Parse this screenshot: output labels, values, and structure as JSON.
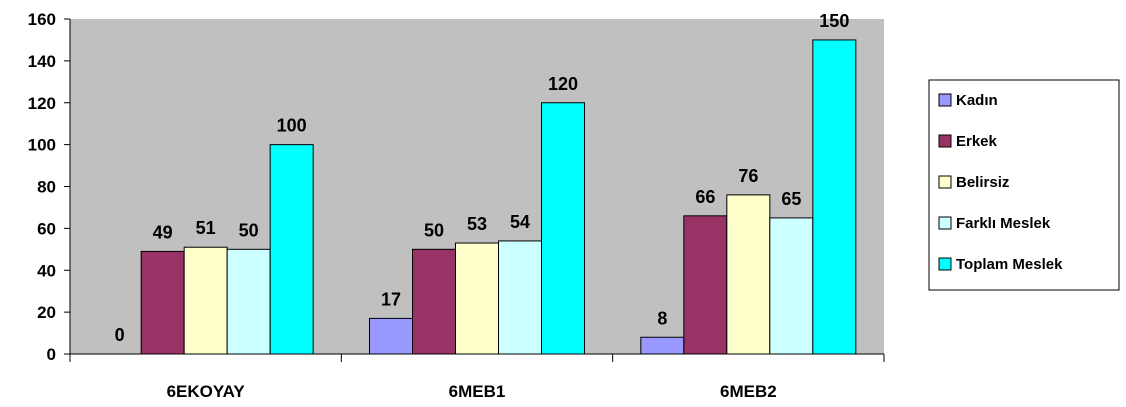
{
  "chart_data": {
    "type": "bar",
    "categories": [
      "6EKOYAY",
      "6MEB1",
      "6MEB2"
    ],
    "series": [
      {
        "name": "Kadın",
        "color": "#9999ff",
        "values": [
          0,
          17,
          8
        ]
      },
      {
        "name": "Erkek",
        "color": "#993366",
        "values": [
          49,
          50,
          66
        ]
      },
      {
        "name": "Belirsiz",
        "color": "#ffffcc",
        "values": [
          51,
          53,
          76
        ]
      },
      {
        "name": "Farklı Meslek",
        "color": "#ccffff",
        "values": [
          50,
          54,
          65
        ]
      },
      {
        "name": "Toplam Meslek",
        "color": "#00ffff",
        "values": [
          100,
          120,
          150
        ]
      }
    ],
    "ylim": [
      0,
      160
    ],
    "yticks": [
      0,
      20,
      40,
      60,
      80,
      100,
      120,
      140,
      160
    ],
    "plot_background": "#c0c0c0",
    "grid": false,
    "legend_position": "right"
  }
}
